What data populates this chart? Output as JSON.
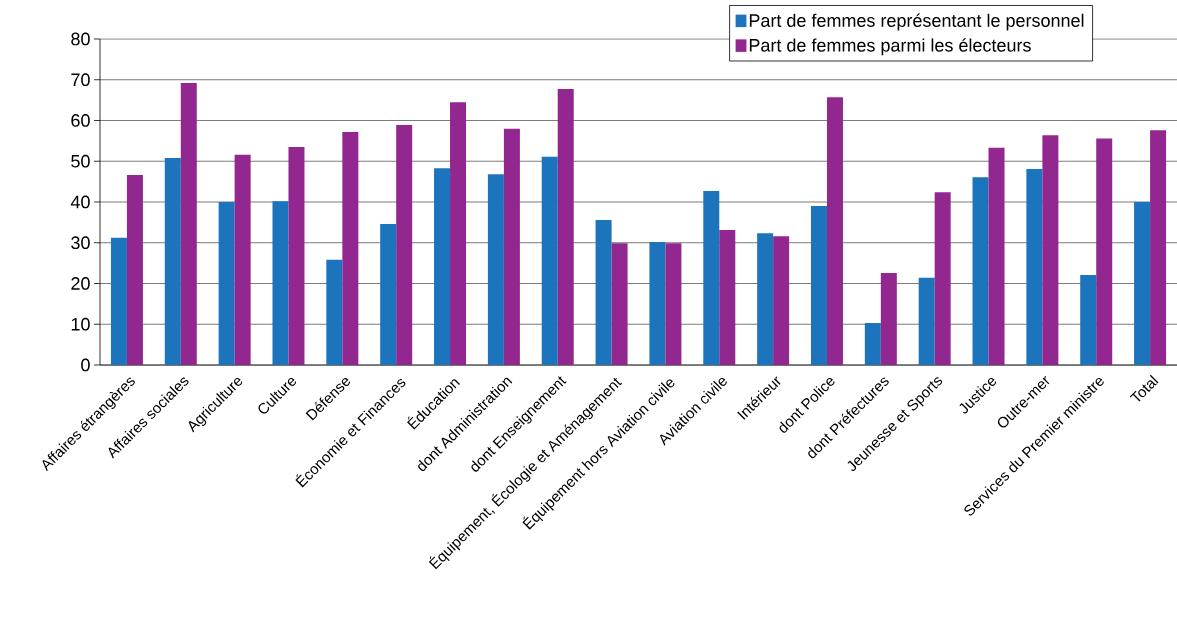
{
  "chart_data": {
    "type": "bar",
    "categories": [
      "Affaires étrangères",
      "Affaires sociales",
      "Agriculture",
      "Culture",
      "Défense",
      "Économie et Finances",
      "Éducation",
      "dont Administration",
      "dont Enseignement",
      "Équipement, Écologie et Aménagement",
      "Équipement hors Aviation civile",
      "Aviation civile",
      "Intérieur",
      "dont Police",
      "dont  Préfectures",
      "Jeunesse et Sports",
      "Justice",
      "Outre-mer",
      "Services du Premier ministre",
      "Total"
    ],
    "series": [
      {
        "name": "Part de femmes représentant le personnel",
        "color": "#1c75bc",
        "values": [
          31.2,
          50.8,
          40,
          40.2,
          25.8,
          34.6,
          48.3,
          46.8,
          51.1,
          35.6,
          30.2,
          42.7,
          32.3,
          39,
          10.3,
          21.4,
          46.1,
          48.1,
          22.1,
          40
        ]
      },
      {
        "name": "Part de femmes parmi les électeurs",
        "color": "#92278f",
        "values": [
          46.6,
          69.2,
          51.6,
          53.5,
          57.2,
          58.9,
          64.5,
          58,
          67.7,
          29.9,
          29.9,
          33.1,
          31.6,
          65.7,
          22.6,
          42.4,
          53.3,
          56.4,
          55.6,
          57.6
        ]
      }
    ],
    "ylim": [
      0,
      80
    ],
    "yticks": [
      0,
      10,
      20,
      30,
      40,
      50,
      60,
      70,
      80
    ],
    "grid": "y",
    "legend": "top right"
  }
}
